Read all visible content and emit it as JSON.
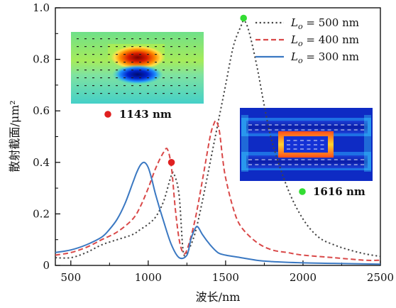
{
  "chart_data": {
    "type": "line",
    "xlabel": "波长/nm",
    "ylabel": "散射截面/μm²",
    "xlim": [
      400,
      2500
    ],
    "ylim": [
      0,
      1.0
    ],
    "xticks": [
      500,
      1000,
      1500,
      2000,
      2500
    ],
    "yticks": [
      0,
      0.2,
      0.4,
      0.6,
      0.8,
      1.0
    ],
    "ytick_labels": [
      "0",
      "0.2",
      "0.4",
      "0.6",
      "0.8",
      "1.0"
    ],
    "legend_position": "top-right",
    "series": [
      {
        "name": "L_o = 500 nm",
        "legend_label": "Lo = 500 nm",
        "color": "#444444",
        "style": "dotted",
        "x": [
          400,
          500,
          600,
          700,
          800,
          900,
          950,
          1000,
          1050,
          1100,
          1150,
          1170,
          1200,
          1225,
          1250,
          1300,
          1350,
          1400,
          1450,
          1500,
          1550,
          1600,
          1620,
          1650,
          1700,
          1750,
          1800,
          1900,
          2000,
          2100,
          2200,
          2300,
          2400,
          2500
        ],
        "y": [
          0.03,
          0.03,
          0.05,
          0.08,
          0.1,
          0.12,
          0.14,
          0.16,
          0.19,
          0.25,
          0.35,
          0.35,
          0.27,
          0.06,
          0.05,
          0.12,
          0.25,
          0.4,
          0.55,
          0.7,
          0.85,
          0.93,
          0.95,
          0.91,
          0.78,
          0.62,
          0.48,
          0.3,
          0.18,
          0.11,
          0.08,
          0.06,
          0.045,
          0.035
        ]
      },
      {
        "name": "L_o = 400 nm",
        "legend_label": "Lo = 400 nm",
        "color": "#d94848",
        "style": "dashed",
        "x": [
          400,
          500,
          600,
          700,
          800,
          900,
          950,
          1000,
          1050,
          1100,
          1125,
          1150,
          1175,
          1200,
          1225,
          1250,
          1300,
          1350,
          1400,
          1425,
          1440,
          1460,
          1480,
          1500,
          1550,
          1600,
          1700,
          1800,
          1900,
          2000,
          2200,
          2400,
          2500
        ],
        "y": [
          0.04,
          0.05,
          0.07,
          0.1,
          0.13,
          0.18,
          0.23,
          0.3,
          0.38,
          0.44,
          0.45,
          0.38,
          0.22,
          0.1,
          0.05,
          0.06,
          0.17,
          0.33,
          0.5,
          0.55,
          0.56,
          0.52,
          0.42,
          0.34,
          0.22,
          0.15,
          0.09,
          0.06,
          0.05,
          0.04,
          0.03,
          0.02,
          0.02
        ]
      },
      {
        "name": "L_o = 300 nm",
        "legend_label": "Lo = 300 nm",
        "color": "#3a78c2",
        "style": "solid",
        "x": [
          400,
          500,
          600,
          700,
          750,
          800,
          850,
          900,
          925,
          950,
          975,
          1000,
          1025,
          1050,
          1100,
          1150,
          1200,
          1250,
          1275,
          1300,
          1320,
          1350,
          1400,
          1450,
          1500,
          1600,
          1700,
          1800,
          2000,
          2200,
          2500
        ],
        "y": [
          0.05,
          0.06,
          0.08,
          0.11,
          0.14,
          0.18,
          0.24,
          0.32,
          0.36,
          0.39,
          0.4,
          0.38,
          0.33,
          0.27,
          0.17,
          0.08,
          0.03,
          0.04,
          0.1,
          0.14,
          0.15,
          0.12,
          0.08,
          0.05,
          0.04,
          0.03,
          0.02,
          0.015,
          0.01,
          0.008,
          0.005
        ]
      }
    ],
    "markers": [
      {
        "x": 1150,
        "y": 0.4,
        "color": "#e02020",
        "label": "1143 nm"
      },
      {
        "x": 1616,
        "y": 0.96,
        "color": "#33dd33",
        "label": "1616 nm"
      }
    ],
    "legend_prefix": "L",
    "legend_sub": "o",
    "legend_values": [
      "500 nm",
      "400 nm",
      "300 nm"
    ]
  }
}
